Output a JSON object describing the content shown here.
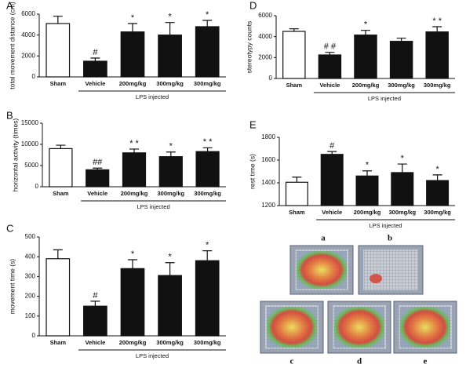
{
  "chart_data": [
    {
      "type": "bar",
      "panel": "A",
      "y_label": "total movement distance (cm)",
      "group_label": "LPS injected",
      "categories": [
        "Sham",
        "Vehicle",
        "200mg/kg",
        "300mg/kg",
        "300mg/kg"
      ],
      "values": [
        5100,
        1500,
        4300,
        4000,
        4800
      ],
      "errors": [
        700,
        300,
        800,
        1200,
        600
      ],
      "annotations": [
        null,
        "#",
        "*",
        "*",
        "*"
      ],
      "colors": [
        "#ffffff",
        "#111111",
        "#111111",
        "#111111",
        "#111111"
      ],
      "ylim": [
        0,
        6000
      ],
      "yticks": [
        0,
        2000,
        4000,
        6000
      ]
    },
    {
      "type": "bar",
      "panel": "B",
      "y_label": "horizontal activity (times)",
      "group_label": "LPS injected",
      "categories": [
        "Sham",
        "Vehicle",
        "200mg/kg",
        "300mg/kg",
        "300mg/kg"
      ],
      "values": [
        9000,
        4000,
        8000,
        7100,
        8300
      ],
      "errors": [
        800,
        400,
        900,
        1100,
        900
      ],
      "annotations": [
        null,
        "##",
        "* *",
        "*",
        "* *"
      ],
      "colors": [
        "#ffffff",
        "#111111",
        "#111111",
        "#111111",
        "#111111"
      ],
      "ylim": [
        0,
        15000
      ],
      "yticks": [
        0,
        5000,
        10000,
        15000
      ]
    },
    {
      "type": "bar",
      "panel": "C",
      "y_label": "movement time (s)",
      "group_label": "LPS injected",
      "categories": [
        "Sham",
        "Vehicle",
        "200mg/kg",
        "300mg/kg",
        "300mg/kg"
      ],
      "values": [
        390,
        150,
        340,
        305,
        380
      ],
      "errors": [
        45,
        25,
        45,
        65,
        50
      ],
      "annotations": [
        null,
        "#",
        "*",
        "*",
        "*"
      ],
      "colors": [
        "#ffffff",
        "#111111",
        "#111111",
        "#111111",
        "#111111"
      ],
      "ylim": [
        0,
        500
      ],
      "yticks": [
        0,
        100,
        200,
        300,
        400,
        500
      ]
    },
    {
      "type": "bar",
      "panel": "D",
      "y_label": "stereotypy counts",
      "group_label": "LPS injected",
      "categories": [
        "Sham",
        "Vehicle",
        "200mg/kg",
        "300mg/kg",
        "300mg/kg"
      ],
      "values": [
        4500,
        2250,
        4150,
        3550,
        4450
      ],
      "errors": [
        250,
        250,
        450,
        300,
        500
      ],
      "annotations": [
        null,
        "# #",
        "*",
        null,
        "* *"
      ],
      "colors": [
        "#ffffff",
        "#111111",
        "#111111",
        "#111111",
        "#111111"
      ],
      "ylim": [
        0,
        6000
      ],
      "yticks": [
        0,
        2000,
        4000,
        6000
      ]
    },
    {
      "type": "bar",
      "panel": "E",
      "y_label": "rest time (s)",
      "group_label": "LPS injected",
      "categories": [
        "Sham",
        "Vehicle",
        "200mg/kg",
        "300mg/kg",
        "300mg/kg"
      ],
      "values": [
        1405,
        1650,
        1460,
        1490,
        1420
      ],
      "errors": [
        45,
        25,
        45,
        75,
        50
      ],
      "annotations": [
        null,
        "#",
        "*",
        "*",
        "*"
      ],
      "colors": [
        "#ffffff",
        "#111111",
        "#111111",
        "#111111",
        "#111111"
      ],
      "ylim": [
        1200,
        1800
      ],
      "yticks": [
        1200,
        1400,
        1600,
        1800
      ]
    }
  ],
  "heatmap_labels": [
    "a",
    "b",
    "c",
    "d",
    "e"
  ]
}
